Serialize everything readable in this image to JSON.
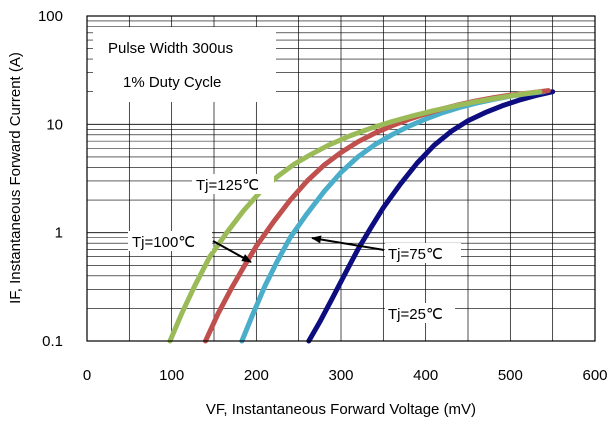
{
  "chart_data": {
    "type": "line",
    "title": "",
    "xlabel": "VF, Instantaneous Forward  Voltage (mV)",
    "ylabel": "IF, Instantaneous Forward Current (A)",
    "x_scale": "linear",
    "y_scale": "log",
    "xlim": [
      0,
      600
    ],
    "ylim": [
      0.1,
      100
    ],
    "x_ticks": [
      "0",
      "100",
      "200",
      "300",
      "400",
      "500",
      "600"
    ],
    "y_ticks": [
      "0.1",
      "1",
      "10",
      "100"
    ],
    "grid": true,
    "legend": "none",
    "notes": [
      "Pulse Width 300us",
      "1% Duty Cycle"
    ],
    "series": [
      {
        "name": "Tj=25℃",
        "color": "#0d0d80",
        "points": [
          [
            262,
            0.1
          ],
          [
            275,
            0.15
          ],
          [
            290,
            0.25
          ],
          [
            305,
            0.42
          ],
          [
            320,
            0.7
          ],
          [
            335,
            1.1
          ],
          [
            350,
            1.7
          ],
          [
            370,
            2.8
          ],
          [
            390,
            4.4
          ],
          [
            410,
            6.4
          ],
          [
            430,
            8.6
          ],
          [
            450,
            10.8
          ],
          [
            470,
            12.8
          ],
          [
            490,
            14.8
          ],
          [
            510,
            16.7
          ],
          [
            530,
            18.4
          ],
          [
            550,
            20
          ]
        ]
      },
      {
        "name": "Tj=75℃",
        "color": "#4aaecb",
        "points": [
          [
            183,
            0.1
          ],
          [
            195,
            0.17
          ],
          [
            210,
            0.32
          ],
          [
            225,
            0.55
          ],
          [
            240,
            0.9
          ],
          [
            260,
            1.5
          ],
          [
            280,
            2.4
          ],
          [
            300,
            3.6
          ],
          [
            320,
            5.0
          ],
          [
            340,
            6.5
          ],
          [
            360,
            8.0
          ],
          [
            380,
            9.6
          ],
          [
            400,
            11.2
          ],
          [
            420,
            12.8
          ],
          [
            440,
            14.3
          ],
          [
            460,
            15.7
          ],
          [
            480,
            17.0
          ],
          [
            500,
            18.2
          ],
          [
            520,
            19.2
          ],
          [
            540,
            20
          ]
        ]
      },
      {
        "name": "Tj=100℃",
        "color": "#c0504d",
        "points": [
          [
            140,
            0.1
          ],
          [
            155,
            0.18
          ],
          [
            170,
            0.3
          ],
          [
            185,
            0.48
          ],
          [
            200,
            0.75
          ],
          [
            220,
            1.25
          ],
          [
            240,
            2.0
          ],
          [
            260,
            3.0
          ],
          [
            280,
            4.2
          ],
          [
            300,
            5.5
          ],
          [
            320,
            6.9
          ],
          [
            340,
            8.3
          ],
          [
            360,
            9.7
          ],
          [
            380,
            11.1
          ],
          [
            400,
            12.5
          ],
          [
            420,
            13.9
          ],
          [
            440,
            15.2
          ],
          [
            460,
            16.5
          ],
          [
            480,
            17.6
          ],
          [
            500,
            18.6
          ],
          [
            520,
            19.4
          ],
          [
            545,
            20.5
          ]
        ]
      },
      {
        "name": "Tj=125℃",
        "color": "#9bbb59",
        "points": [
          [
            98,
            0.1
          ],
          [
            112,
            0.18
          ],
          [
            127,
            0.32
          ],
          [
            145,
            0.6
          ],
          [
            165,
            1.0
          ],
          [
            185,
            1.6
          ],
          [
            205,
            2.4
          ],
          [
            225,
            3.3
          ],
          [
            245,
            4.3
          ],
          [
            265,
            5.3
          ],
          [
            285,
            6.4
          ],
          [
            310,
            7.8
          ],
          [
            335,
            9.2
          ],
          [
            360,
            10.6
          ],
          [
            385,
            12.0
          ],
          [
            410,
            13.4
          ],
          [
            435,
            14.8
          ],
          [
            460,
            16.2
          ],
          [
            485,
            17.5
          ],
          [
            510,
            18.8
          ],
          [
            535,
            20
          ]
        ]
      }
    ],
    "annotations": [
      {
        "text": "Tj=125℃"
      },
      {
        "text": "Tj=100℃"
      },
      {
        "text": "Tj=75℃"
      },
      {
        "text": "Tj=25℃"
      }
    ]
  }
}
